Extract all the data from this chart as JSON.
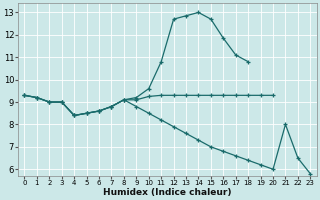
{
  "xlabel": "Humidex (Indice chaleur)",
  "xlim": [
    -0.5,
    23.5
  ],
  "ylim": [
    5.7,
    13.4
  ],
  "yticks": [
    6,
    7,
    8,
    9,
    10,
    11,
    12,
    13
  ],
  "xticks": [
    0,
    1,
    2,
    3,
    4,
    5,
    6,
    7,
    8,
    9,
    10,
    11,
    12,
    13,
    14,
    15,
    16,
    17,
    18,
    19,
    20,
    21,
    22,
    23
  ],
  "bg_color": "#cce8e8",
  "grid_color": "#aacccc",
  "line_color": "#1a6b6b",
  "line1_x": [
    0,
    1,
    2,
    3,
    4,
    5,
    6,
    7,
    8,
    9,
    10,
    11,
    12,
    13,
    14,
    15,
    16,
    17,
    18,
    19,
    20
  ],
  "line1_y": [
    9.3,
    9.2,
    9.0,
    9.0,
    8.4,
    8.5,
    8.6,
    8.8,
    9.1,
    9.1,
    9.25,
    9.3,
    9.3,
    9.3,
    9.3,
    9.3,
    9.3,
    9.3,
    9.3,
    9.3,
    9.3
  ],
  "line2_x": [
    0,
    1,
    2,
    3,
    4,
    5,
    6,
    7,
    8,
    9,
    10,
    11,
    12,
    13,
    14,
    15,
    16,
    17,
    18
  ],
  "line2_y": [
    9.3,
    9.2,
    9.0,
    9.0,
    8.4,
    8.5,
    8.6,
    8.8,
    9.1,
    9.2,
    9.6,
    10.8,
    12.7,
    12.85,
    13.0,
    12.7,
    11.85,
    11.1,
    10.8
  ],
  "line3_x": [
    0,
    1,
    2,
    3,
    4,
    5,
    6,
    7,
    8,
    9,
    10,
    11,
    12,
    13,
    14,
    15,
    16,
    17,
    18,
    19,
    20,
    21,
    22,
    23
  ],
  "line3_y": [
    9.3,
    9.2,
    9.0,
    9.0,
    8.4,
    8.5,
    8.6,
    8.8,
    9.1,
    8.8,
    8.5,
    8.2,
    7.9,
    7.6,
    7.3,
    7.0,
    6.8,
    6.6,
    6.4,
    6.2,
    6.0,
    8.0,
    6.5,
    5.8
  ]
}
